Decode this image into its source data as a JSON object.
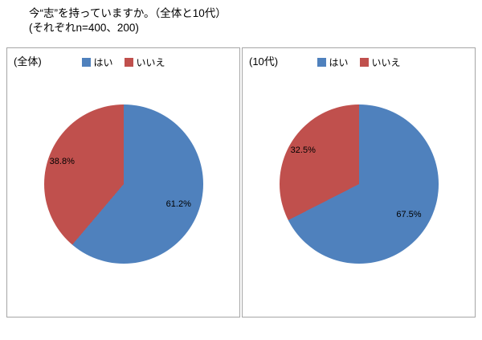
{
  "title": {
    "line1": "今“志”を持っていますか。（全体と10代）",
    "line2": "(それぞれn=400、200)"
  },
  "chart_data": [
    {
      "type": "pie",
      "title": "(全体)",
      "n": 400,
      "labels": [
        "はい",
        "いいえ"
      ],
      "values": [
        61.2,
        38.8
      ],
      "colors": [
        "#4F81BD",
        "#C0504D"
      ],
      "legend_position": "top",
      "start_angle": "12-oclock-clockwise"
    },
    {
      "type": "pie",
      "title": "(10代)",
      "n": 200,
      "labels": [
        "はい",
        "いいえ"
      ],
      "values": [
        67.5,
        32.5
      ],
      "colors": [
        "#4F81BD",
        "#C0504D"
      ],
      "legend_position": "top",
      "start_angle": "12-oclock-clockwise"
    }
  ]
}
